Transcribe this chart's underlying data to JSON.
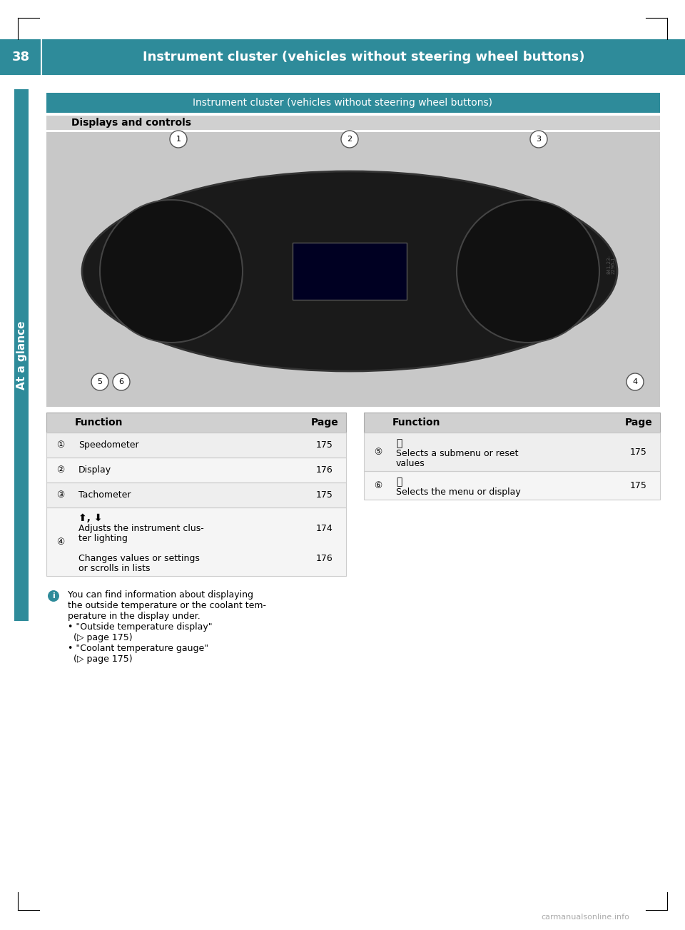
{
  "page_bg": "#ffffff",
  "header_bg": "#2e8b9a",
  "header_text_color": "#ffffff",
  "header_page_num": "38",
  "header_title": "Instrument cluster (vehicles without steering wheel buttons)",
  "sidebar_color": "#2e8b9a",
  "sidebar_text": "At a glance",
  "section_header_bg": "#2e8b9a",
  "section_header_text": "Instrument cluster (vehicles without steering wheel buttons)",
  "section_header_text_color": "#ffffff",
  "subsection_header_bg": "#d0d0d0",
  "subsection_header_text": "Displays and controls",
  "subsection_text_color": "#000000",
  "table_header_bg": "#d0d0d0",
  "table_row_alt_bg": "#eeeeee",
  "table_row_bg": "#f5f5f5",
  "left_table": {
    "headers": [
      "Function",
      "Page"
    ],
    "rows": [
      {
        "symbol": "①",
        "function": "Speedometer",
        "page": "175",
        "multiline": false
      },
      {
        "symbol": "②",
        "function": "Display",
        "page": "176",
        "multiline": false
      },
      {
        "symbol": "③",
        "function": "Tachometer",
        "page": "175",
        "multiline": false
      },
      {
        "symbol": "④",
        "function_lines": [
          "⬆, ⬇",
          "Adjusts the instrument clus-",
          "ter lighting",
          "",
          "Changes values or settings",
          "or scrolls in lists"
        ],
        "pages": [
          "",
          "174",
          "",
          "",
          "176",
          ""
        ],
        "multiline": true
      }
    ]
  },
  "right_table": {
    "headers": [
      "Function",
      "Page"
    ],
    "rows": [
      {
        "symbol": "⑤",
        "function_lines": [
          "Ⓡ",
          "Selects a submenu or reset",
          "values"
        ],
        "page": "175",
        "multiline": true
      },
      {
        "symbol": "⑥",
        "function_lines": [
          "Ⓡ",
          "Selects the menu or display"
        ],
        "page": "175",
        "multiline": true
      }
    ]
  },
  "info_text_lines": [
    "You can find information about displaying",
    "the outside temperature or the coolant tem-",
    "perature in the display under.",
    "• \"Outside temperature display\"",
    "  (▷ page 175)",
    "• \"Coolant temperature gauge\"",
    "  (▷ page 175)"
  ],
  "footer_url": "carmanualsonline.info",
  "corner_marks": true
}
